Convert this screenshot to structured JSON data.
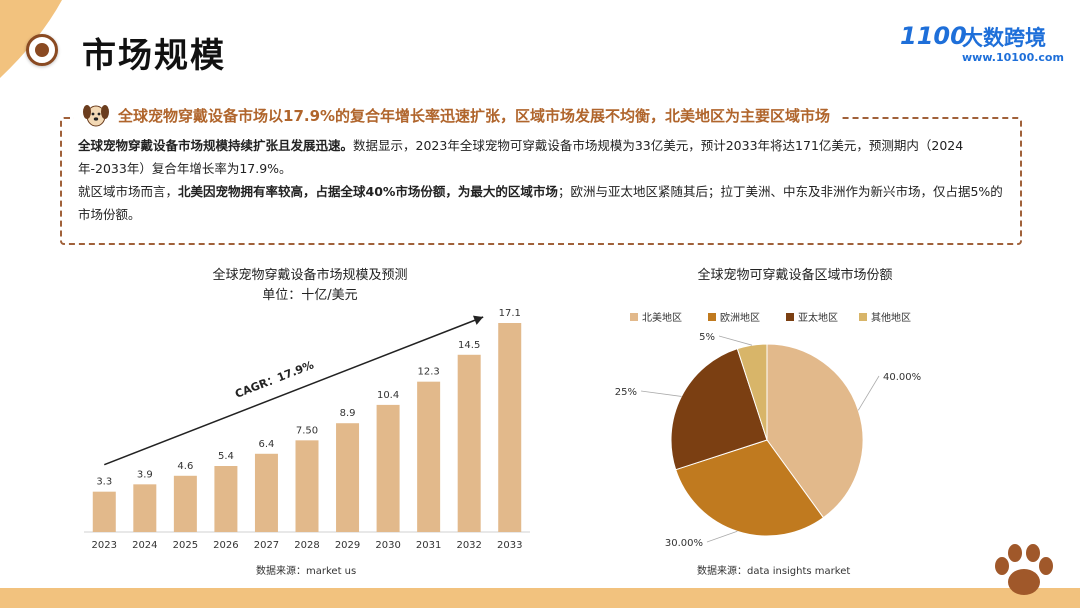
{
  "page": {
    "title": "市场规模",
    "logo_mark": "1100",
    "logo_name": "大数跨境",
    "logo_url": "www.10100.com"
  },
  "summary": {
    "headline": "全球宠物穿戴设备市场以17.9%的复合年增长率迅速扩张，区域市场发展不均衡，北美地区为主要区域市场",
    "p1_bold": "全球宠物穿戴设备市场规模持续扩张且发展迅速。",
    "p1_rest": "数据显示，2023年全球宠物可穿戴设备市场规模为33亿美元，预计2033年将达171亿美元，预测期内（2024年-2033年）复合年增长率为17.9%。",
    "p2_start": "就区域市场而言，",
    "p2_bold": "北美因宠物拥有率较高，占据全球40%市场份额，为最大的区域市场",
    "p2_rest": "；欧洲与亚太地区紧随其后；拉丁美洲、中东及非洲作为新兴市场，仅占据5%的市场份额。"
  },
  "chart_data": [
    {
      "type": "bar",
      "title": "全球宠物穿戴设备市场规模及预测",
      "subtitle": "单位：十亿/美元",
      "categories": [
        "2023",
        "2024",
        "2025",
        "2026",
        "2027",
        "2028",
        "2029",
        "2030",
        "2031",
        "2032",
        "2033"
      ],
      "values": [
        3.3,
        3.9,
        4.6,
        5.4,
        6.4,
        7.5,
        8.9,
        10.4,
        12.3,
        14.5,
        17.1
      ],
      "value_labels": [
        "3.3",
        "3.9",
        "4.6",
        "5.4",
        "6.4",
        "7.50",
        "8.9",
        "10.4",
        "12.3",
        "14.5",
        "17.1"
      ],
      "ylim": [
        0,
        18
      ],
      "annotation": "CAGR：17.9%",
      "source": "数据来源：market us",
      "color": "#e2b98b"
    },
    {
      "type": "pie",
      "title": "全球宠物可穿戴设备区域市场份额",
      "labels": [
        "北美地区",
        "欧洲地区",
        "亚太地区",
        "其他地区"
      ],
      "values": [
        40,
        30,
        25,
        5
      ],
      "value_labels": [
        "40.00%",
        "30.00%",
        "25%",
        "5%"
      ],
      "colors": [
        "#e2b98b",
        "#c07a1f",
        "#7b3f12",
        "#d8b569"
      ],
      "legend_position": "top",
      "source": "数据来源：data insights market"
    }
  ],
  "colors": {
    "accent": "#b0652c",
    "border": "#a0613a",
    "bottom_bar": "#f2c27e",
    "brand_blue": "#1e6fd9"
  }
}
